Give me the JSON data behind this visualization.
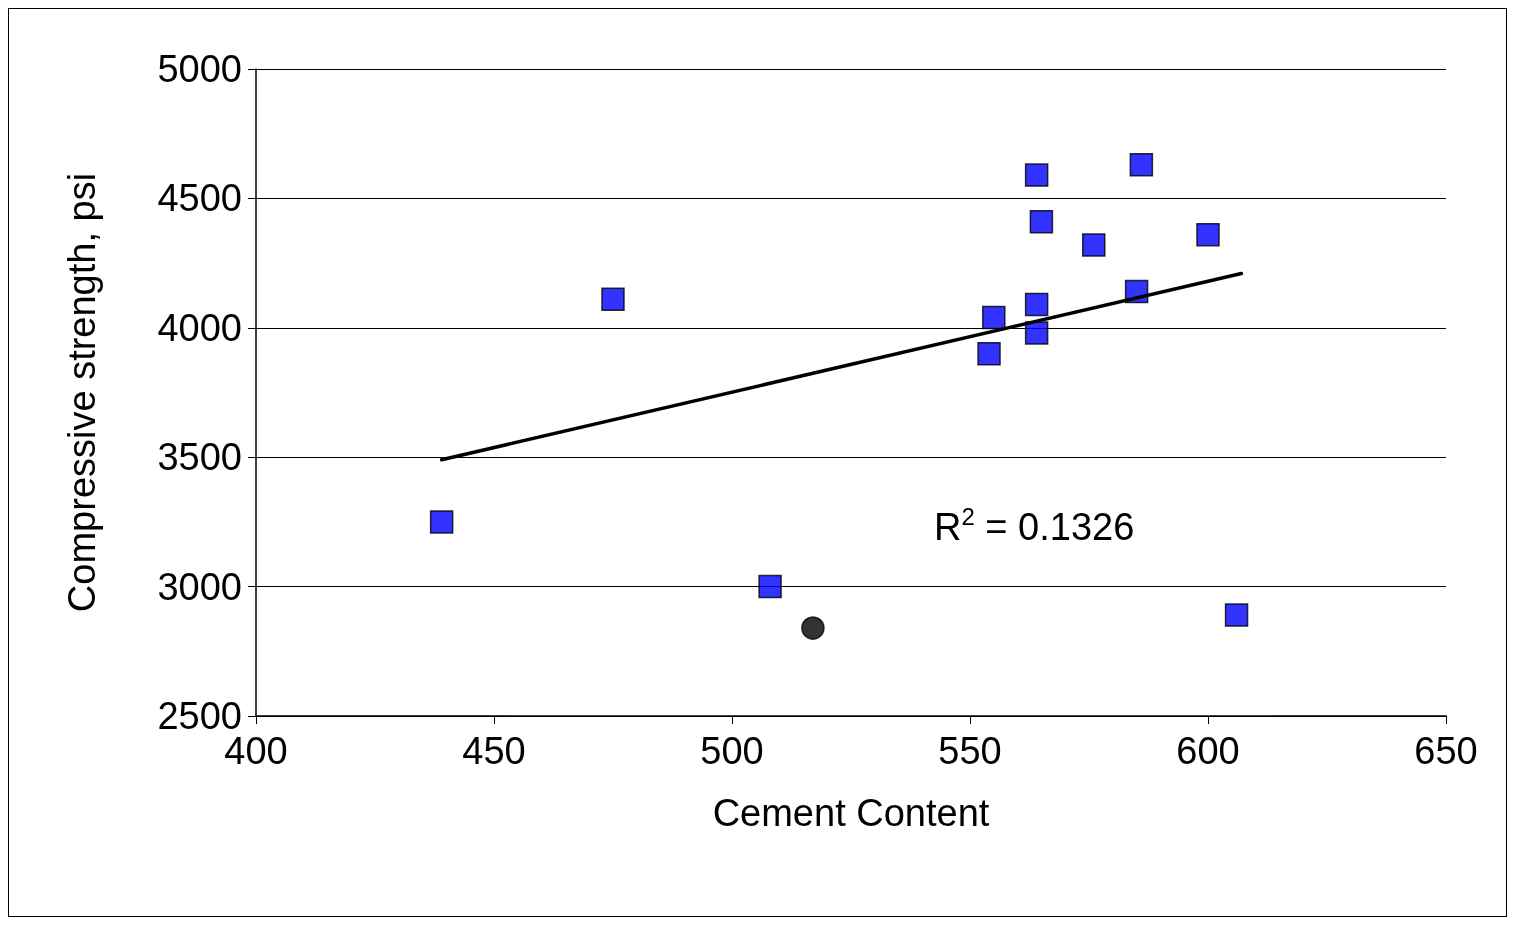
{
  "chart_data": {
    "type": "scatter",
    "xlabel": "Cement Content",
    "ylabel": "Compressive strength, psi",
    "xlim": [
      400,
      650
    ],
    "xticks": [
      400,
      450,
      500,
      550,
      600,
      650
    ],
    "ylim": [
      2500,
      5000
    ],
    "yticks": [
      2500,
      3000,
      3500,
      4000,
      4500,
      5000
    ],
    "grid": "y",
    "marker": "square",
    "annotations": [
      "R$^{2}$ = 0.1326"
    ],
    "series": [
      {
        "color": "#0000ff",
        "x": [
          439,
          475,
          508,
          564,
          586,
          565,
          576,
          600,
          585,
          564,
          555,
          564,
          554,
          606
        ],
        "values": [
          3250,
          4110,
          3000,
          4590,
          4630,
          4410,
          4320,
          4360,
          4140,
          4090,
          4040,
          3980,
          3900,
          2890
        ]
      },
      {
        "type": "scatter",
        "color": "#000000",
        "marker": "circle",
        "x": [
          517
        ],
        "values": [
          2840
        ]
      },
      {
        "type": "line",
        "color": "#000000",
        "line_style": "solid",
        "marker": "none",
        "x": [
          439,
          607
        ],
        "values": [
          3490,
          4210
        ]
      }
    ]
  }
}
